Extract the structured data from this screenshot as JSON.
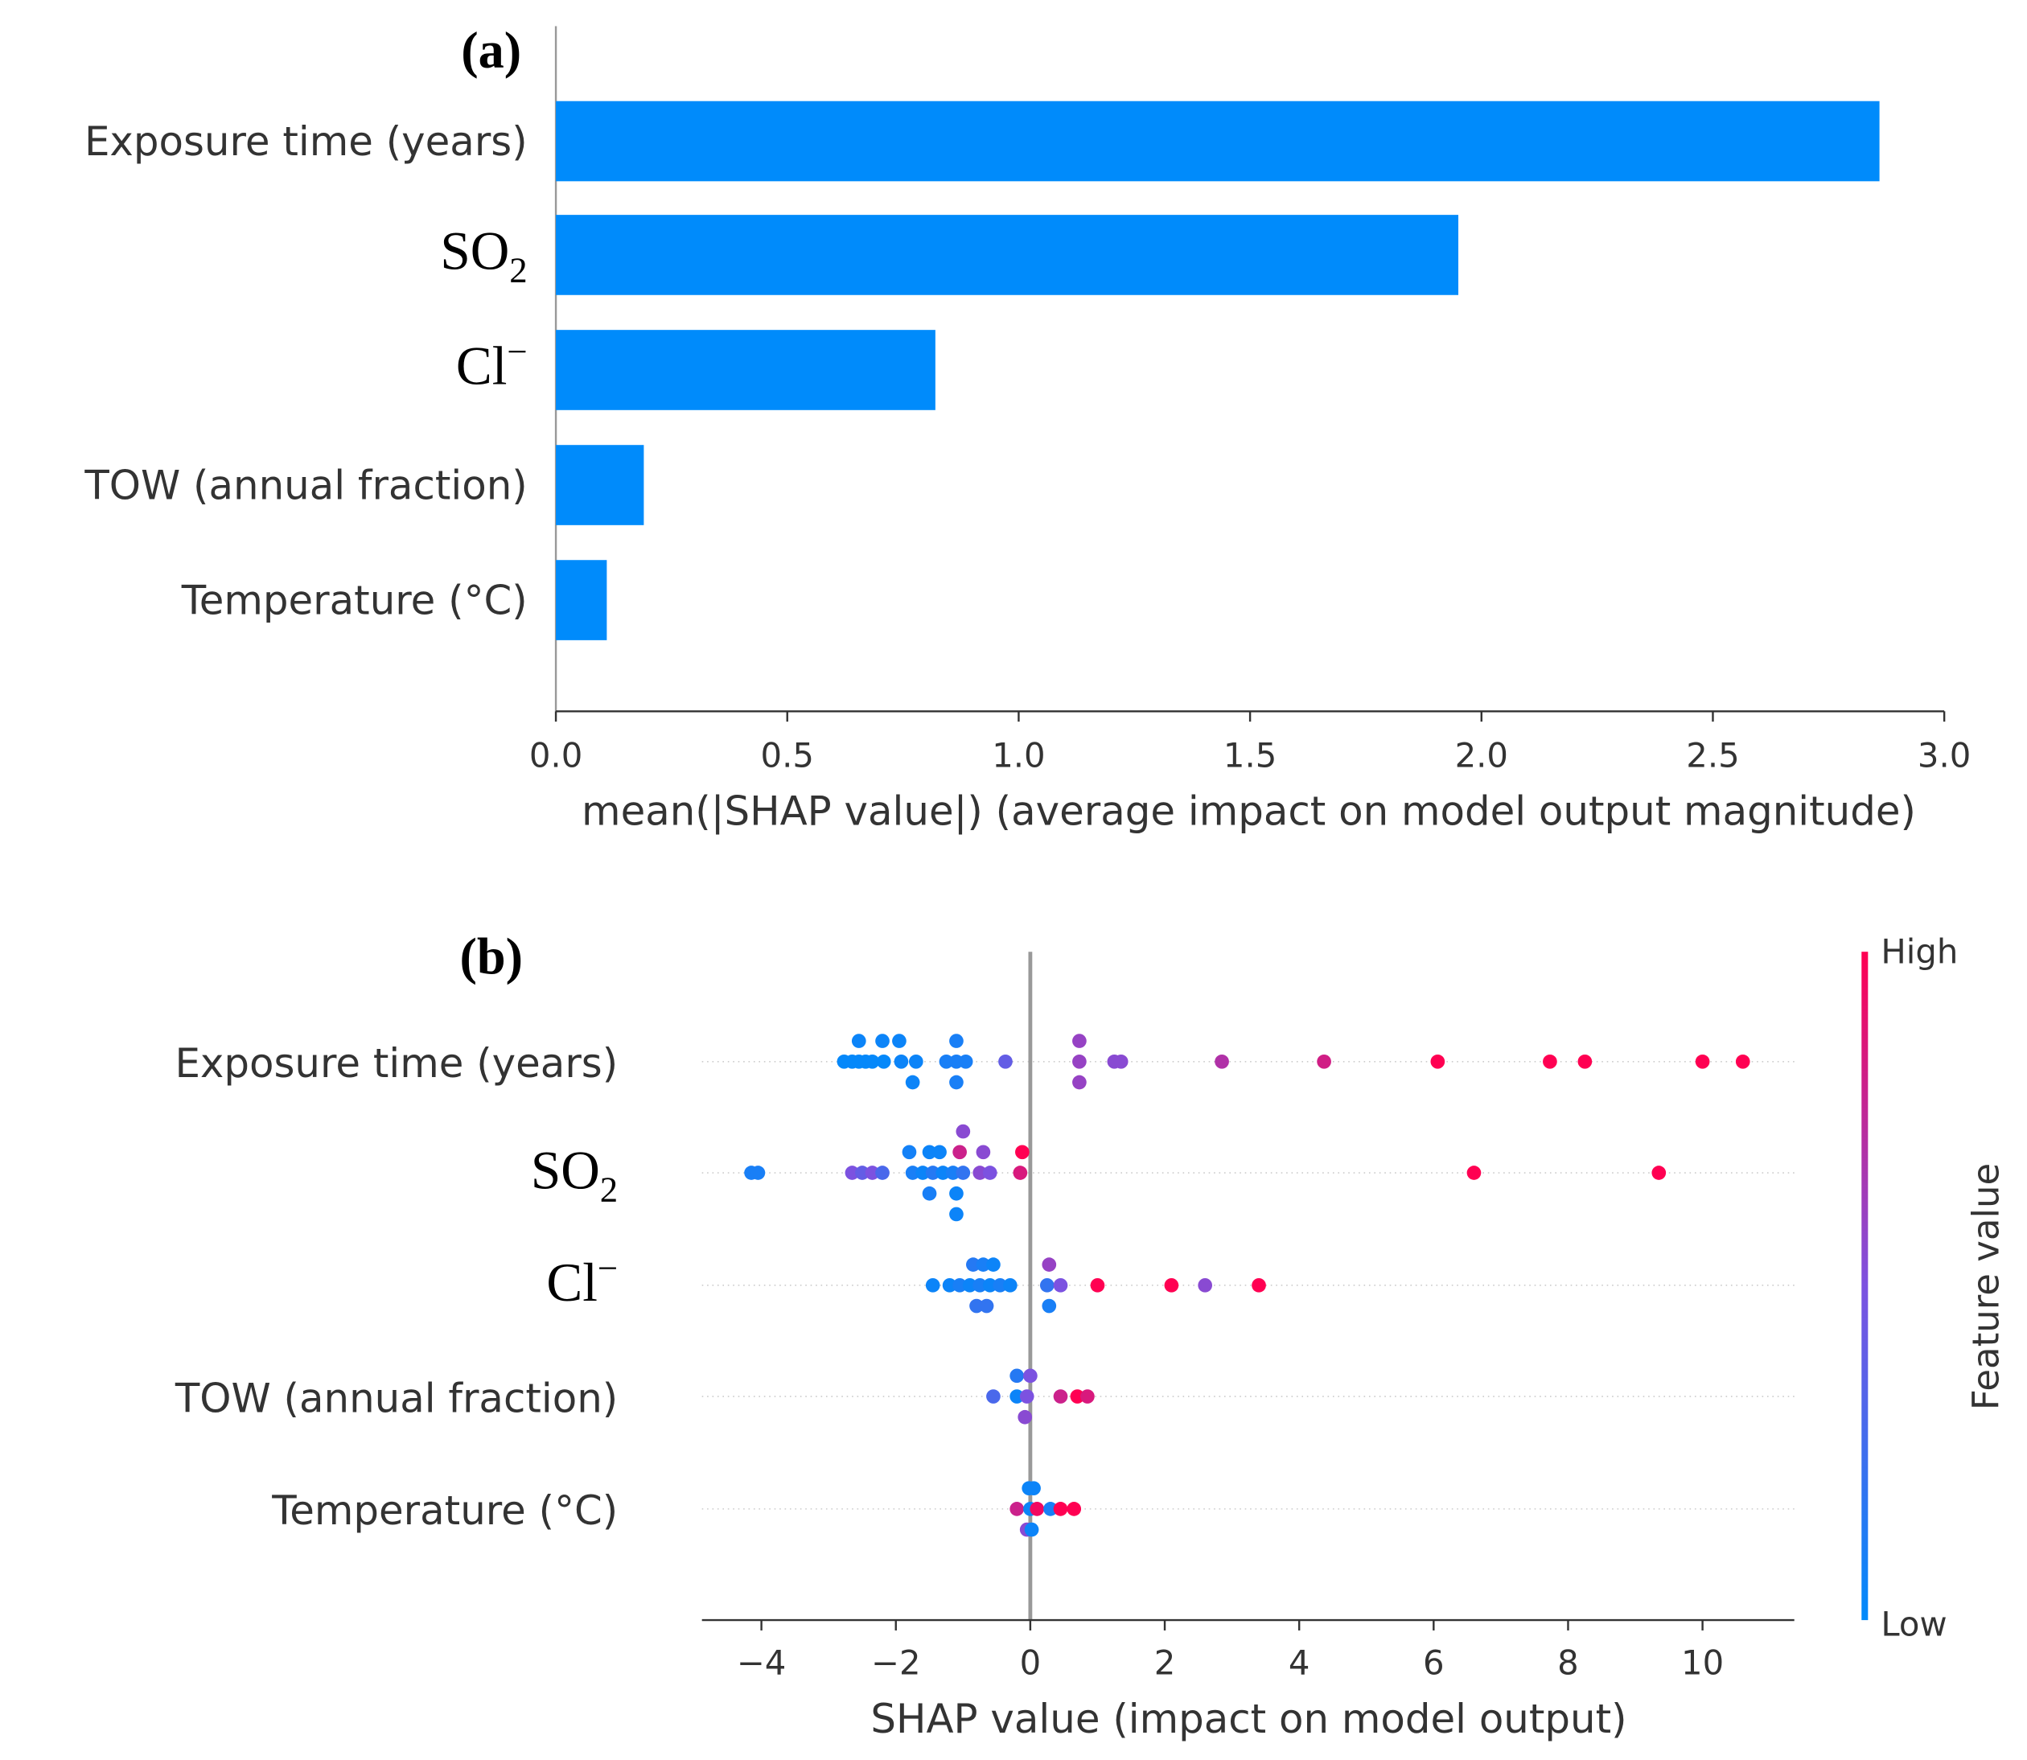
{
  "chart_data": [
    {
      "type": "bar",
      "panel_label": "(a)",
      "orientation": "horizontal",
      "categories": [
        "Exposure time (years)",
        "SO2",
        "Cl-",
        "TOW (annual fraction)",
        "Temperature (°C)"
      ],
      "category_display": [
        {
          "main": "Exposure time (years)",
          "sub": "",
          "sup": ""
        },
        {
          "main": "SO",
          "sub": "2",
          "sup": ""
        },
        {
          "main": "Cl",
          "sub": "",
          "sup": "−"
        },
        {
          "main": "TOW (annual fraction)",
          "sub": "",
          "sup": ""
        },
        {
          "main": "Temperature (°C)",
          "sub": "",
          "sup": ""
        }
      ],
      "values": [
        2.86,
        1.95,
        0.82,
        0.19,
        0.11
      ],
      "xlabel": "mean(|SHAP value|) (average impact on model output magnitude)",
      "xlim": [
        0,
        3.0
      ],
      "xticks": [
        "0.0",
        "0.5",
        "1.0",
        "1.5",
        "2.0",
        "2.5",
        "3.0"
      ],
      "color": "#008bfb",
      "grid": false
    },
    {
      "type": "scatter",
      "panel_label": "(b)",
      "subtype": "beeswarm",
      "categories": [
        "Exposure time (years)",
        "SO2",
        "Cl-",
        "TOW (annual fraction)",
        "Temperature (°C)"
      ],
      "category_display": [
        {
          "main": "Exposure time (years)",
          "sub": "",
          "sup": ""
        },
        {
          "main": "SO",
          "sub": "2",
          "sup": ""
        },
        {
          "main": "Cl",
          "sub": "",
          "sup": "−"
        },
        {
          "main": "TOW (annual fraction)",
          "sub": "",
          "sup": ""
        },
        {
          "main": "Temperature (°C)",
          "sub": "",
          "sup": ""
        }
      ],
      "xlabel": "SHAP value (impact on model output)",
      "xlim": [
        -4.9,
        11.3
      ],
      "xticks": [
        "−4",
        "−2",
        "0",
        "2",
        "4",
        "6",
        "8",
        "10"
      ],
      "xtick_values": [
        -4,
        -2,
        0,
        2,
        4,
        6,
        8,
        10
      ],
      "colorbar": {
        "label": "Feature value",
        "high": "High",
        "low": "Low",
        "low_color": "#008afb",
        "mid_color": "#7c52e0",
        "high_color": "#ff0052"
      },
      "point_fields": [
        "shap_value",
        "feature_value_normalized",
        "swarm_lane"
      ],
      "series": [
        {
          "name": "Exposure time (years)",
          "points": [
            [
              -2.55,
              0.05,
              -1
            ],
            [
              -2.2,
              0.05,
              -1
            ],
            [
              -1.95,
              0.05,
              -1
            ],
            [
              -1.1,
              0.1,
              -1
            ],
            [
              0.73,
              0.6,
              -1
            ],
            [
              -2.77,
              0.02,
              0
            ],
            [
              -2.65,
              0.02,
              0
            ],
            [
              -2.55,
              0.02,
              0
            ],
            [
              -2.45,
              0.02,
              0
            ],
            [
              -2.35,
              0.02,
              0
            ],
            [
              -2.18,
              0.02,
              0
            ],
            [
              -1.92,
              0.05,
              0
            ],
            [
              -1.7,
              0.05,
              0
            ],
            [
              -1.25,
              0.1,
              0
            ],
            [
              -1.1,
              0.1,
              0
            ],
            [
              -0.96,
              0.1,
              0
            ],
            [
              -0.37,
              0.4,
              0
            ],
            [
              0.73,
              0.6,
              0
            ],
            [
              1.25,
              0.55,
              0
            ],
            [
              1.35,
              0.55,
              0
            ],
            [
              2.85,
              0.7,
              0
            ],
            [
              4.37,
              0.82,
              0
            ],
            [
              6.06,
              1,
              0
            ],
            [
              7.73,
              1,
              0
            ],
            [
              8.25,
              1,
              0
            ],
            [
              10.0,
              1,
              0
            ],
            [
              10.6,
              1,
              0
            ],
            [
              -1.75,
              0.05,
              1
            ],
            [
              -1.1,
              0.1,
              1
            ],
            [
              0.73,
              0.6,
              1
            ]
          ]
        },
        {
          "name": "SO2",
          "points": [
            [
              -1.0,
              0.55,
              -2
            ],
            [
              -1.8,
              0.08,
              -1
            ],
            [
              -1.5,
              0.05,
              -1
            ],
            [
              -1.35,
              0.05,
              -1
            ],
            [
              -1.05,
              0.8,
              -1
            ],
            [
              -0.7,
              0.55,
              -1
            ],
            [
              -0.12,
              1,
              -1
            ],
            [
              -4.15,
              0.1,
              0
            ],
            [
              -4.05,
              0.1,
              0
            ],
            [
              -2.65,
              0.5,
              0
            ],
            [
              -2.5,
              0.4,
              0
            ],
            [
              -2.35,
              0.5,
              0
            ],
            [
              -2.2,
              0.3,
              0
            ],
            [
              -1.75,
              0.1,
              0
            ],
            [
              -1.6,
              0.05,
              0
            ],
            [
              -1.45,
              0.15,
              0
            ],
            [
              -1.3,
              0.05,
              0
            ],
            [
              -1.15,
              0.1,
              0
            ],
            [
              -1.0,
              0.2,
              0
            ],
            [
              -0.75,
              0.55,
              0
            ],
            [
              -0.6,
              0.5,
              0
            ],
            [
              -0.15,
              0.85,
              0
            ],
            [
              6.6,
              1,
              0
            ],
            [
              9.35,
              1,
              0
            ],
            [
              -1.5,
              0.1,
              1
            ],
            [
              -1.1,
              0.05,
              1
            ],
            [
              -1.1,
              0.05,
              2
            ]
          ]
        },
        {
          "name": "Cl-",
          "points": [
            [
              -0.85,
              0.15,
              -1
            ],
            [
              -0.7,
              0.1,
              -1
            ],
            [
              -0.55,
              0.05,
              -1
            ],
            [
              0.28,
              0.6,
              -1
            ],
            [
              -1.45,
              0.05,
              0
            ],
            [
              -1.2,
              0.05,
              0
            ],
            [
              -1.05,
              0.1,
              0
            ],
            [
              -0.9,
              0.05,
              0
            ],
            [
              -0.75,
              0.1,
              0
            ],
            [
              -0.6,
              0.05,
              0
            ],
            [
              -0.45,
              0.1,
              0
            ],
            [
              -0.3,
              0.05,
              0
            ],
            [
              0.25,
              0.2,
              0
            ],
            [
              0.45,
              0.5,
              0
            ],
            [
              1.0,
              1,
              0
            ],
            [
              2.1,
              1,
              0
            ],
            [
              2.6,
              0.55,
              0
            ],
            [
              3.4,
              1,
              0
            ],
            [
              -0.8,
              0.2,
              1
            ],
            [
              -0.65,
              0.2,
              1
            ],
            [
              0.28,
              0.1,
              1
            ]
          ]
        },
        {
          "name": "TOW (annual fraction)",
          "points": [
            [
              -0.2,
              0.15,
              -1
            ],
            [
              0.0,
              0.5,
              -1
            ],
            [
              -0.55,
              0.3,
              0
            ],
            [
              -0.2,
              0.05,
              0
            ],
            [
              -0.05,
              0.5,
              0
            ],
            [
              0.45,
              0.8,
              0
            ],
            [
              0.7,
              1,
              0
            ],
            [
              0.85,
              0.85,
              0
            ],
            [
              -0.08,
              0.55,
              1
            ]
          ]
        },
        {
          "name": "Temperature (°C)",
          "points": [
            [
              -0.02,
              0.05,
              -1
            ],
            [
              0.05,
              0.05,
              -1
            ],
            [
              -0.2,
              0.8,
              0
            ],
            [
              0.0,
              0.05,
              0
            ],
            [
              0.1,
              0.95,
              0
            ],
            [
              0.3,
              0.1,
              0
            ],
            [
              0.45,
              1,
              0
            ],
            [
              0.65,
              1,
              0
            ],
            [
              -0.05,
              0.55,
              1
            ],
            [
              0.02,
              0.05,
              1
            ]
          ]
        }
      ]
    }
  ]
}
